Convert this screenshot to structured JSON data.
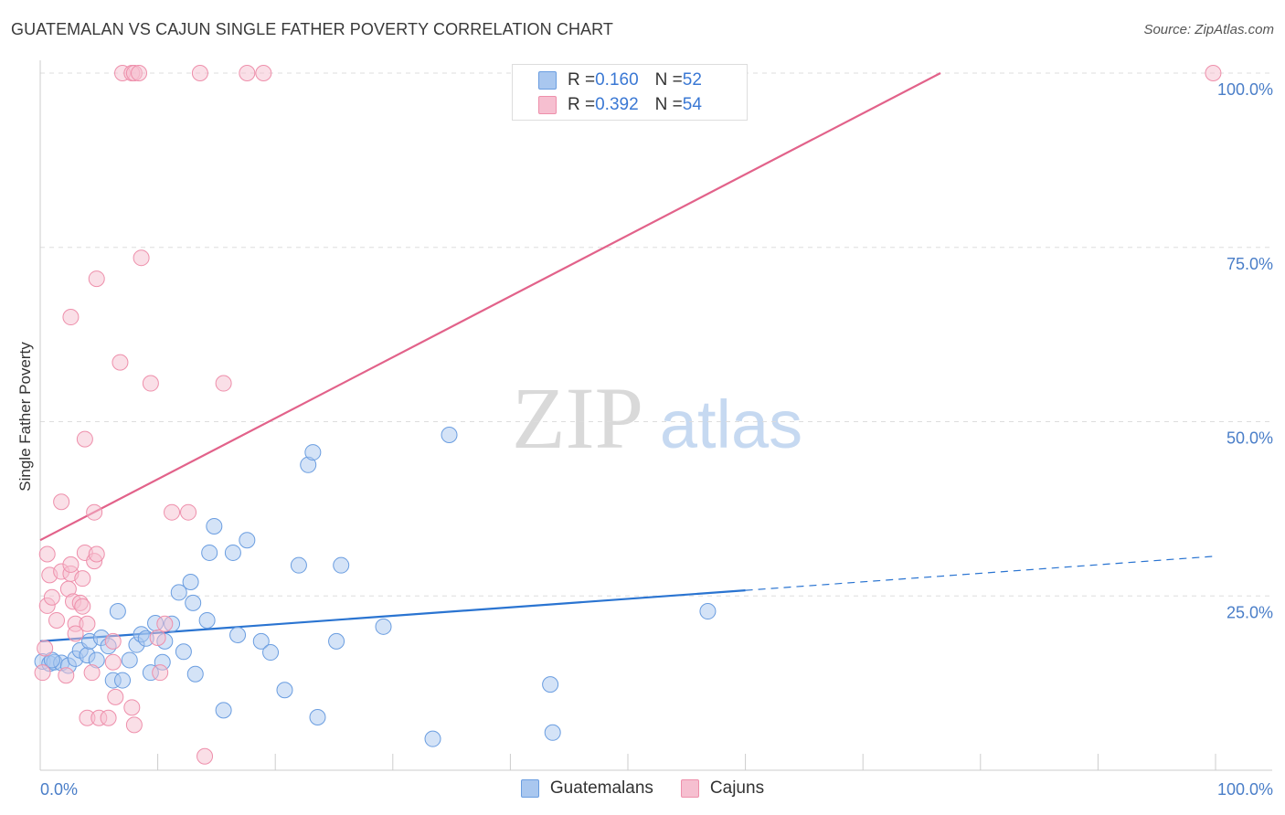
{
  "title": "GUATEMALAN VS CAJUN SINGLE FATHER POVERTY CORRELATION CHART",
  "source": "Source: ZipAtlas.com",
  "watermark": {
    "part1": "ZIP",
    "part2": "atlas"
  },
  "legend_top": [
    {
      "series": "Guatemalans",
      "r_label": "R = ",
      "r_value": "0.160",
      "n_label": "N = ",
      "n_value": "52"
    },
    {
      "series": "Cajuns",
      "r_label": "R = ",
      "r_value": "0.392",
      "n_label": "N = ",
      "n_value": "54"
    }
  ],
  "legend_bottom": [
    "Guatemalans",
    "Cajuns"
  ],
  "colors": {
    "blue_fill": "#a9c7ef",
    "blue_stroke": "#6a9de0",
    "blue_line": "#2a74d1",
    "pink_fill": "#f6bfd0",
    "pink_stroke": "#ee8fab",
    "pink_line": "#e2628a",
    "grid": "#dddddd",
    "axis_text": "#4a7ec8"
  },
  "chart_data": {
    "type": "scatter",
    "title": "GUATEMALAN VS CAJUN SINGLE FATHER POVERTY CORRELATION CHART",
    "xlabel": "",
    "ylabel": "Single Father Poverty",
    "xlim": [
      0,
      100
    ],
    "ylim": [
      0,
      100
    ],
    "x_tick_labels": [
      "0.0%",
      "100.0%"
    ],
    "y_ticks": [
      25,
      50,
      75,
      100
    ],
    "y_tick_labels": [
      "25.0%",
      "50.0%",
      "75.0%",
      "100.0%"
    ],
    "grid": true,
    "series": [
      {
        "name": "Guatemalans",
        "r": 0.16,
        "n": 52,
        "trend": {
          "x0": 0,
          "y0": 18.5,
          "x1": 60,
          "y1": 25.8,
          "dashed_to_x": 100,
          "dashed_to_y": 30.7
        },
        "points": [
          [
            0.2,
            15.6
          ],
          [
            0.8,
            15.3
          ],
          [
            1.2,
            15.5
          ],
          [
            1.8,
            15.4
          ],
          [
            2.4,
            15.0
          ],
          [
            3.0,
            16.0
          ],
          [
            3.4,
            17.2
          ],
          [
            4.0,
            16.5
          ],
          [
            4.2,
            18.5
          ],
          [
            4.8,
            15.8
          ],
          [
            5.2,
            19.0
          ],
          [
            5.8,
            17.8
          ],
          [
            6.2,
            12.9
          ],
          [
            6.6,
            22.8
          ],
          [
            7.0,
            12.9
          ],
          [
            7.6,
            15.8
          ],
          [
            8.2,
            18.0
          ],
          [
            8.6,
            19.5
          ],
          [
            9.0,
            18.9
          ],
          [
            9.4,
            14.0
          ],
          [
            9.8,
            21.1
          ],
          [
            10.4,
            15.5
          ],
          [
            10.6,
            18.5
          ],
          [
            11.2,
            21.0
          ],
          [
            11.8,
            25.5
          ],
          [
            12.2,
            17.0
          ],
          [
            12.8,
            27.0
          ],
          [
            13.0,
            24.0
          ],
          [
            13.2,
            13.8
          ],
          [
            14.2,
            21.5
          ],
          [
            14.4,
            31.2
          ],
          [
            14.8,
            35.0
          ],
          [
            15.6,
            8.6
          ],
          [
            16.4,
            31.2
          ],
          [
            16.8,
            19.4
          ],
          [
            17.6,
            33.0
          ],
          [
            18.8,
            18.5
          ],
          [
            19.6,
            16.9
          ],
          [
            20.8,
            11.5
          ],
          [
            22.0,
            29.4
          ],
          [
            22.8,
            43.8
          ],
          [
            23.2,
            45.6
          ],
          [
            23.6,
            7.6
          ],
          [
            25.2,
            18.5
          ],
          [
            25.6,
            29.4
          ],
          [
            29.2,
            20.6
          ],
          [
            33.4,
            4.5
          ],
          [
            34.8,
            48.1
          ],
          [
            43.4,
            12.3
          ],
          [
            43.6,
            5.4
          ],
          [
            56.8,
            22.8
          ],
          [
            1.0,
            15.8
          ]
        ]
      },
      {
        "name": "Cajuns",
        "r": 0.392,
        "n": 54,
        "trend": {
          "x0": 0,
          "y0": 33.0,
          "x1": 76.6,
          "y1": 100.0
        },
        "points": [
          [
            0.2,
            14.0
          ],
          [
            0.4,
            17.5
          ],
          [
            0.6,
            23.6
          ],
          [
            0.8,
            28.0
          ],
          [
            0.6,
            31.0
          ],
          [
            1.0,
            24.8
          ],
          [
            1.4,
            21.5
          ],
          [
            1.8,
            38.5
          ],
          [
            1.8,
            28.5
          ],
          [
            2.2,
            13.6
          ],
          [
            2.4,
            26.0
          ],
          [
            2.6,
            28.2
          ],
          [
            2.6,
            65.0
          ],
          [
            2.8,
            24.2
          ],
          [
            3.0,
            21.0
          ],
          [
            3.0,
            19.6
          ],
          [
            3.4,
            24.0
          ],
          [
            3.6,
            27.5
          ],
          [
            3.6,
            23.5
          ],
          [
            3.8,
            31.2
          ],
          [
            3.8,
            47.5
          ],
          [
            4.0,
            21.0
          ],
          [
            4.0,
            7.5
          ],
          [
            4.4,
            14.0
          ],
          [
            4.6,
            37.0
          ],
          [
            4.6,
            30.0
          ],
          [
            4.8,
            70.5
          ],
          [
            4.8,
            31.0
          ],
          [
            5.0,
            7.5
          ],
          [
            5.8,
            7.5
          ],
          [
            6.2,
            15.5
          ],
          [
            6.2,
            18.5
          ],
          [
            6.8,
            58.5
          ],
          [
            6.4,
            10.5
          ],
          [
            7.0,
            100
          ],
          [
            7.8,
            100
          ],
          [
            7.8,
            9.0
          ],
          [
            8.0,
            100
          ],
          [
            8.0,
            6.5
          ],
          [
            8.4,
            100
          ],
          [
            8.6,
            73.5
          ],
          [
            9.4,
            55.5
          ],
          [
            10.0,
            19.0
          ],
          [
            10.2,
            14.0
          ],
          [
            10.6,
            21.0
          ],
          [
            11.2,
            37.0
          ],
          [
            12.6,
            37.0
          ],
          [
            13.6,
            100
          ],
          [
            14.0,
            2.0
          ],
          [
            15.6,
            55.5
          ],
          [
            17.6,
            100
          ],
          [
            19.0,
            100
          ],
          [
            99.8,
            100
          ],
          [
            2.6,
            29.5
          ]
        ]
      }
    ]
  }
}
